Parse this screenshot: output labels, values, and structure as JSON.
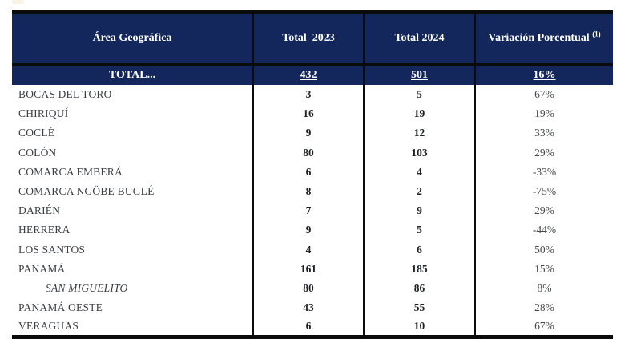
{
  "table": {
    "header": {
      "col_area": "Área Geográfica",
      "col_2023": "Total  2023",
      "col_2024": "Total 2024",
      "col_variacion": "Variación Porcentual ",
      "col_variacion_sup": "(1)"
    },
    "total_row": {
      "label": "TOTAL...",
      "v2023": "432",
      "v2024": "501",
      "var": "16%"
    },
    "rows": [
      {
        "label": "BOCAS DEL TORO",
        "v2023": "3",
        "v2024": "5",
        "var": "67%",
        "italic": false
      },
      {
        "label": "CHIRIQUÍ",
        "v2023": "16",
        "v2024": "19",
        "var": "19%",
        "italic": false
      },
      {
        "label": "COCLÉ",
        "v2023": "9",
        "v2024": "12",
        "var": "33%",
        "italic": false
      },
      {
        "label": "COLÓN",
        "v2023": "80",
        "v2024": "103",
        "var": "29%",
        "italic": false
      },
      {
        "label": "COMARCA EMBERÁ",
        "v2023": "6",
        "v2024": "4",
        "var": "-33%",
        "italic": false
      },
      {
        "label": "COMARCA NGÖBE BUGLÉ",
        "v2023": "8",
        "v2024": "2",
        "var": "-75%",
        "italic": false
      },
      {
        "label": "DARIÉN",
        "v2023": "7",
        "v2024": "9",
        "var": "29%",
        "italic": false
      },
      {
        "label": "HERRERA",
        "v2023": "9",
        "v2024": "5",
        "var": "-44%",
        "italic": false
      },
      {
        "label": "LOS SANTOS",
        "v2023": "4",
        "v2024": "6",
        "var": "50%",
        "italic": false
      },
      {
        "label": "PANAMÁ",
        "v2023": "161",
        "v2024": "185",
        "var": "15%",
        "italic": false
      },
      {
        "label": "SAN MIGUELITO",
        "v2023": "80",
        "v2024": "86",
        "var": "8%",
        "italic": true
      },
      {
        "label": "PANAMÁ OESTE",
        "v2023": "43",
        "v2024": "55",
        "var": "28%",
        "italic": false
      },
      {
        "label": "VERAGUAS",
        "v2023": "6",
        "v2024": "10",
        "var": "67%",
        "italic": false
      }
    ],
    "colors": {
      "header_bg": "#13275c",
      "border": "#0b0b0b",
      "header_text": "#ffffff",
      "label_text": "#3c3f44",
      "number_text": "#1e2126",
      "percent_text": "#45484d",
      "page_bg": "#ffffff"
    }
  }
}
